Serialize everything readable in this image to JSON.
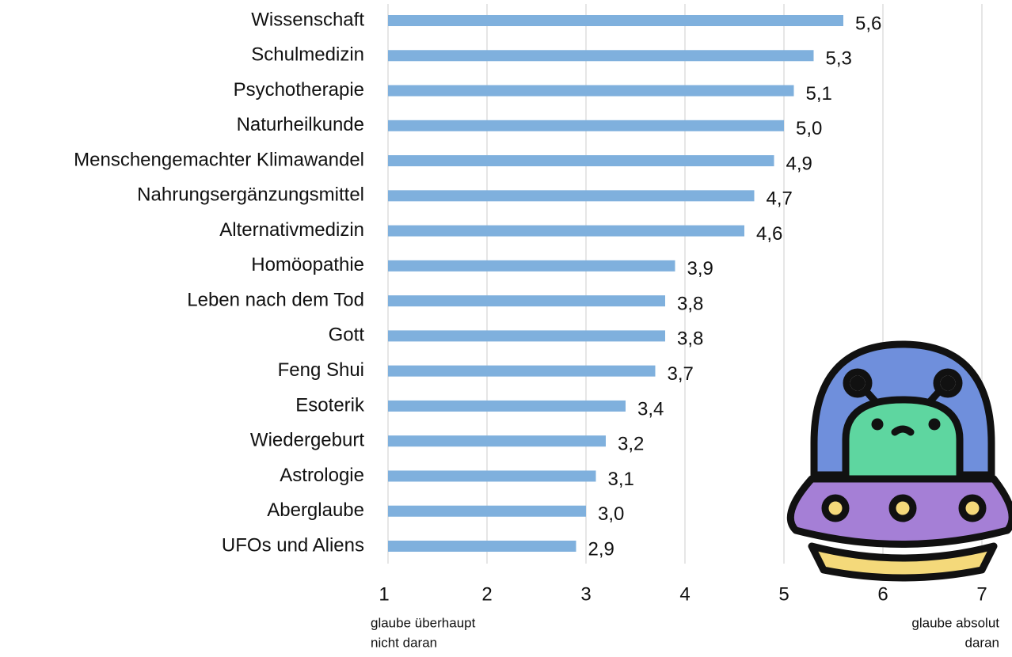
{
  "chart_data": {
    "type": "bar",
    "orientation": "horizontal",
    "categories": [
      "Wissenschaft",
      "Schulmedizin",
      "Psychotherapie",
      "Naturheilkunde",
      "Menschengemachter Klimawandel",
      "Nahrungsergänzungsmittel",
      "Alternativmedizin",
      "Homöopathie",
      "Leben nach dem Tod",
      "Gott",
      "Feng Shui",
      "Esoterik",
      "Wiedergeburt",
      "Astrologie",
      "Aberglaube",
      "UFOs und Aliens"
    ],
    "values": [
      5.6,
      5.3,
      5.1,
      5.0,
      4.9,
      4.7,
      4.6,
      3.9,
      3.8,
      3.8,
      3.7,
      3.4,
      3.2,
      3.1,
      3.0,
      2.9
    ],
    "value_labels": [
      "5,6",
      "5,3",
      "5,1",
      "5,0",
      "4,9",
      "4,7",
      "4,6",
      "3,9",
      "3,8",
      "3,8",
      "3,7",
      "3,4",
      "3,2",
      "3,1",
      "3,0",
      "2,9"
    ],
    "color": "#7fb0dd",
    "xlim": [
      1,
      7
    ],
    "xticks": [
      1,
      2,
      3,
      4,
      5,
      6,
      7
    ],
    "grid": true,
    "x_min_label": [
      "glaube überhaupt",
      "nicht daran"
    ],
    "x_max_label": [
      "glaube absolut",
      "daran"
    ]
  }
}
